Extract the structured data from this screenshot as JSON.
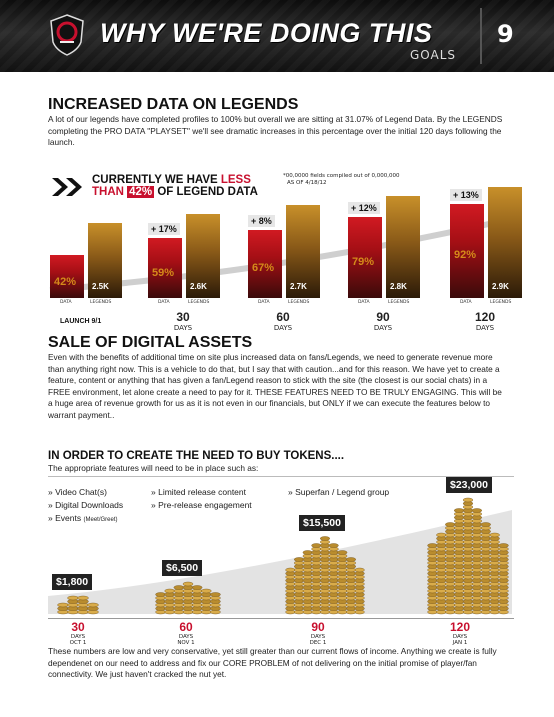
{
  "header": {
    "title": "WHY WE'RE DOING THIS",
    "subtitle": "GOALS",
    "page_number": "9"
  },
  "section1": {
    "heading": "INCREASED DATA ON LEGENDS",
    "body": "A lot of our legends have completed profiles to 100% but overall we are sitting at 31.07% of Legend Data. By the LEGENDS completing the PRO DATA \"PLAYSET\" we'll see dramatic increases in this percentage over the initial 120 days following the launch."
  },
  "chart1_header": {
    "line1_a": "CURRENTLY WE HAVE ",
    "line1_b": "LESS",
    "line2_a": "THAN ",
    "line2_box": "42%",
    "line2_b": " OF LEGEND DATA",
    "note1": "*00,0000 fields compiled out of 0,000,000",
    "note2": "AS OF 4/18/12"
  },
  "section2": {
    "heading": "SALE OF DIGITAL ASSETS",
    "body": "Even with the benefits of additional time on site plus increased data on fans/Legends, we need to generate revenue more than anything right now. This is a vehicle to do that, but I say that with caution...and for this reason. We have yet to create a feature, content or anything that has given a fan/Legend reason to stick with the site (the closest is our social chats) in a FREE environment, let alone create a need to pay for it. THESE FEATURES NEED TO BE TRULY ENGAGING. This will be a huge area of revenue growth for us as it is not even in our financials, but ONLY if we can execute the features below to warrant payment.."
  },
  "section3": {
    "heading": "IN ORDER TO CREATE THE NEED TO BUY TOKENS....",
    "sub": "The appropriate features will need to be in place such as:",
    "features_col1": [
      "Video Chat(s)",
      "Digital Downloads",
      "Events"
    ],
    "events_note": "(Meet/Greet)",
    "features_col2": [
      "Limited release content",
      "Pre-release engagement"
    ],
    "features_col3": [
      "Superfan / Legend group"
    ],
    "bullet": "»"
  },
  "footer": {
    "body": "These numbers are low and very conservative, yet still greater than our current flows of income. Anything we create is fully dependenet on our need to address and fix our CORE PROBLEM of not delivering on the initial promise of player/fan connectivity.  We just haven't cracked the nut yet."
  },
  "chart_data": [
    {
      "type": "bar",
      "title": "CURRENTLY WE HAVE LESS THAN 42% OF LEGEND DATA",
      "categories": [
        "LAUNCH 9/1",
        "30 DAYS",
        "60 DAYS",
        "90 DAYS",
        "120 DAYS"
      ],
      "x_nums": [
        "",
        "30",
        "60",
        "90",
        "120"
      ],
      "x_subs": [
        "",
        "DAYS",
        "DAYS",
        "DAYS",
        "DAYS"
      ],
      "launch_label": "LAUNCH 9/1",
      "series": [
        {
          "name": "DATA",
          "values": [
            42,
            59,
            67,
            79,
            92
          ],
          "labels": [
            "42%",
            "59%",
            "67%",
            "79%",
            "92%"
          ],
          "color": "#c8102e"
        },
        {
          "name": "LEGENDS",
          "values": [
            2.5,
            2.6,
            2.7,
            2.8,
            2.9
          ],
          "labels": [
            "2.5K",
            "2.6K",
            "2.7K",
            "2.8K",
            "2.9K"
          ],
          "color": "#b8801f"
        }
      ],
      "increase_labels": [
        "",
        "+ 17%",
        "+ 8%",
        "+ 12%",
        "+ 13%"
      ],
      "axis_labels": [
        "DATA",
        "LEGENDS"
      ]
    },
    {
      "type": "bar",
      "categories": [
        "30 DAYS OCT 1",
        "60 DAYS NOV 1",
        "90 DAYS DEC 1",
        "120 DAYS JAN 1"
      ],
      "x_nums": [
        "30",
        "60",
        "90",
        "120"
      ],
      "x_days": [
        "DAYS",
        "DAYS",
        "DAYS",
        "DAYS"
      ],
      "x_dates": [
        "OCT 1",
        "NOV 1",
        "DEC 1",
        "JAN 1"
      ],
      "values": [
        1800,
        6500,
        15500,
        23000
      ],
      "labels": [
        "$1,800",
        "$6,500",
        "$15,500",
        "$23,000"
      ]
    }
  ],
  "colors": {
    "accent_red": "#c8102e",
    "gold": "#b8801f",
    "header_bg": "#1a1a1a"
  }
}
